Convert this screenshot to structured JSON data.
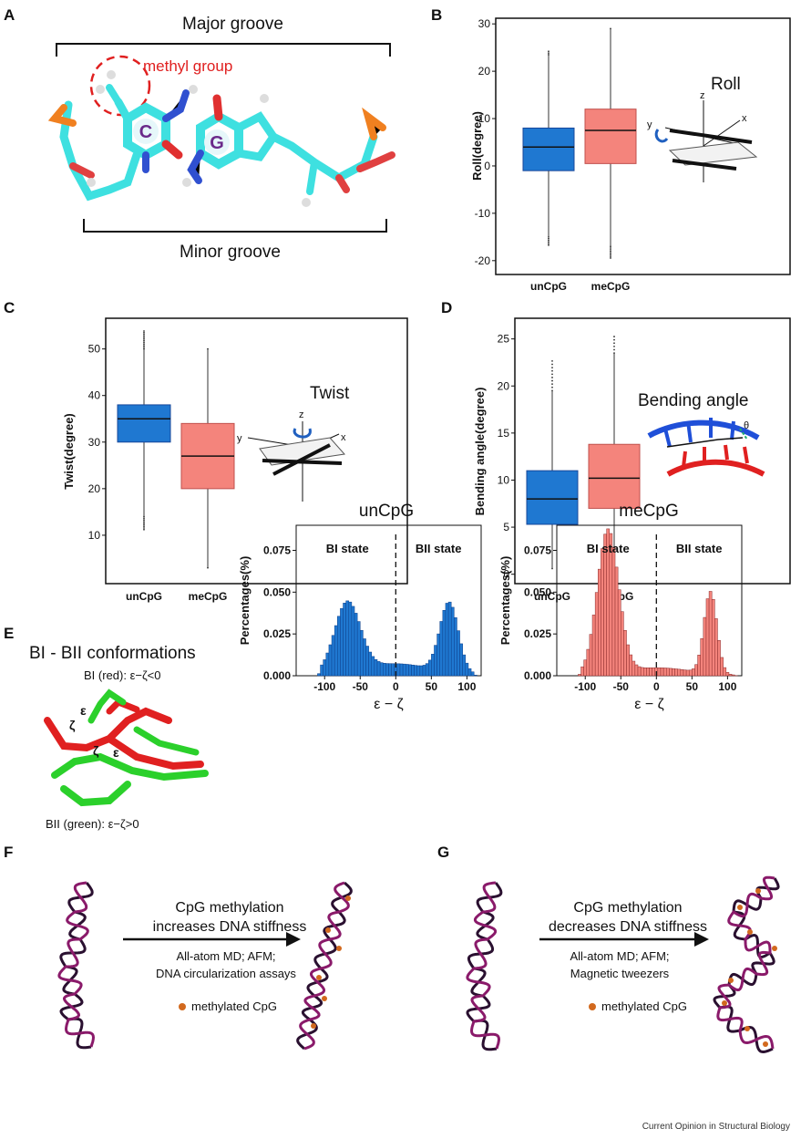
{
  "panel_labels": {
    "a": "A",
    "b": "B",
    "c": "C",
    "d": "D",
    "e": "E",
    "f": "F",
    "g": "G"
  },
  "panel_a": {
    "major": "Major groove",
    "minor": "Minor groove",
    "methyl": "methyl group",
    "base_c": "C",
    "base_g": "G"
  },
  "diagram_labels": {
    "roll": "Roll",
    "twist": "Twist",
    "bending": "Bending angle",
    "axis_x": "x",
    "axis_y": "y",
    "axis_z": "z",
    "theta": "θ"
  },
  "panel_e": {
    "title": "BI - BII conformations",
    "bi": "BI (red): ε−ζ<0",
    "bii": "BII (green): ε−ζ>0",
    "eps": "ε",
    "zeta": "ζ"
  },
  "hist_text": {
    "bi_state": "BI state",
    "bii_state": "BII state"
  },
  "panel_f": {
    "line1": "CpG methylation",
    "line2": "increases DNA stiffness",
    "m1": "All-atom MD; AFM;",
    "m2": "DNA circularization assays",
    "legend": "methylated CpG"
  },
  "panel_g": {
    "line1": "CpG methylation",
    "line2": "decreases DNA stiffness",
    "m1": "All-atom MD; AFM;",
    "m2": "Magnetic tweezers",
    "legend": "methylated CpG"
  },
  "credit": "Current Opinion in Structural Biology",
  "colors": {
    "un": "#1f78d1",
    "me": "#f4847c",
    "me_edge": "#c0504d",
    "red": "#e02020",
    "dna": "#8a1a6a"
  },
  "chart_data": [
    {
      "id": "roll",
      "type": "box",
      "title": "",
      "xlabel": "",
      "ylabel": "Roll(degree)",
      "ylim": [
        -21,
        31
      ],
      "yticks": [
        -20,
        -10,
        0,
        10,
        20,
        30
      ],
      "categories": [
        "unCpG",
        "meCpG"
      ],
      "boxes": [
        {
          "name": "unCpG",
          "q1": -1,
          "median": 4,
          "q3": 8,
          "whisker_low": -15,
          "whisker_high": 23.5,
          "out_low": -17,
          "out_high": 24.5
        },
        {
          "name": "meCpG",
          "q1": 0.5,
          "median": 7.5,
          "q3": 12,
          "whisker_low": -17,
          "whisker_high": 29,
          "out_low": -19.5,
          "out_high": 29
        }
      ]
    },
    {
      "id": "twist",
      "type": "box",
      "title": "",
      "xlabel": "",
      "ylabel": "Twist(degree)",
      "ylim": [
        0,
        56
      ],
      "yticks": [
        10,
        20,
        30,
        40,
        50
      ],
      "categories": [
        "unCpG",
        "meCpG"
      ],
      "boxes": [
        {
          "name": "unCpG",
          "q1": 30,
          "median": 35,
          "q3": 38,
          "whisker_low": 14,
          "whisker_high": 50,
          "out_low": 11,
          "out_high": 54
        },
        {
          "name": "meCpG",
          "q1": 20,
          "median": 27,
          "q3": 34,
          "whisker_low": 3,
          "whisker_high": 50,
          "out_low": 3,
          "out_high": 50
        }
      ]
    },
    {
      "id": "bending",
      "type": "box",
      "title": "",
      "xlabel": "",
      "ylabel": "Bending angle(degree)",
      "ylim": [
        -1,
        27
      ],
      "yticks": [
        0,
        5,
        10,
        15,
        20,
        25
      ],
      "categories": [
        "unCpG",
        "meCpG"
      ],
      "boxes": [
        {
          "name": "unCpG",
          "q1": 5.3,
          "median": 8,
          "q3": 11,
          "whisker_low": 0.6,
          "whisker_high": 19.5,
          "out_low": 0.6,
          "out_high": 23
        },
        {
          "name": "meCpG",
          "q1": 7,
          "median": 10.2,
          "q3": 13.8,
          "whisker_low": 0.3,
          "whisker_high": 23.5,
          "out_low": 0.3,
          "out_high": 25.3
        }
      ]
    },
    {
      "id": "hist_un",
      "type": "bar",
      "title": "unCpG",
      "xlabel": "ε − ζ",
      "ylabel": "Percentages(%)",
      "xlim": [
        -140,
        120
      ],
      "ylim": [
        0,
        0.09
      ],
      "xticks": [
        -100,
        -50,
        0,
        50,
        100
      ],
      "yticks": [
        0.0,
        0.025,
        0.05,
        0.075
      ],
      "ytick_labels": [
        "0.000",
        "0.025",
        "0.050",
        "0.075"
      ],
      "peaks": [
        {
          "center": -68,
          "height": 0.042,
          "width": 18
        },
        {
          "center": 75,
          "height": 0.042,
          "width": 13
        }
      ],
      "baseline": 0.006
    },
    {
      "id": "hist_me",
      "type": "bar",
      "title": "meCpG",
      "xlabel": "ε − ζ",
      "ylabel": "Percentages(%)",
      "xlim": [
        -140,
        120
      ],
      "ylim": [
        0,
        0.09
      ],
      "xticks": [
        -100,
        -50,
        0,
        50,
        100
      ],
      "yticks": [
        0.0,
        0.025,
        0.05,
        0.075
      ],
      "ytick_labels": [
        "0.000",
        "0.025",
        "0.050",
        "0.075"
      ],
      "peaks": [
        {
          "center": -68,
          "height": 0.086,
          "width": 15
        },
        {
          "center": 76,
          "height": 0.049,
          "width": 9
        }
      ],
      "baseline": 0.004
    }
  ]
}
